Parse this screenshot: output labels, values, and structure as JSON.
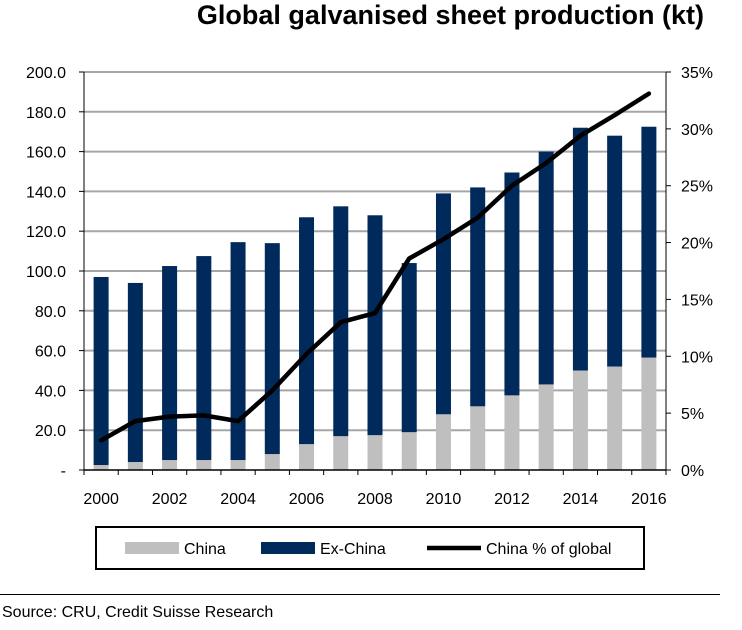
{
  "title": "Global galvanised sheet production (kt)",
  "source": "Source: CRU, Credit Suisse Research",
  "colors": {
    "china": "#bfbfbf",
    "ex_china": "#002a5c",
    "line": "#000000",
    "grid": "#a6a6a6"
  },
  "chart_data": {
    "type": "bar",
    "stacked": true,
    "title": "Global galvanised sheet production (kt)",
    "categories": [
      "2000",
      "2001",
      "2002",
      "2003",
      "2004",
      "2005",
      "2006",
      "2007",
      "2008",
      "2009",
      "2010",
      "2011",
      "2012",
      "2013",
      "2014",
      "2015",
      "2016"
    ],
    "x_tick_labels": [
      "2000",
      "2002",
      "2004",
      "2006",
      "2008",
      "2010",
      "2012",
      "2014",
      "2016"
    ],
    "y_tick_labels": [
      "-",
      "20.0",
      "40.0",
      "60.0",
      "80.0",
      "100.0",
      "120.0",
      "140.0",
      "160.0",
      "180.0",
      "200.0"
    ],
    "y2_tick_labels": [
      "0%",
      "5%",
      "10%",
      "15%",
      "20%",
      "25%",
      "30%",
      "35%"
    ],
    "ylim": [
      0,
      200
    ],
    "y2lim": [
      0,
      35
    ],
    "grid": true,
    "legend_position": "bottom",
    "series": [
      {
        "name": "China",
        "type": "bar",
        "axis": "left",
        "values": [
          2.5,
          4,
          5,
          5,
          5,
          8,
          13,
          17,
          17.5,
          19,
          28,
          32,
          37.5,
          43,
          50,
          52,
          56.5
        ]
      },
      {
        "name": "Ex-China",
        "type": "bar",
        "axis": "left",
        "values": [
          94.5,
          90,
          97.5,
          102.5,
          109.5,
          106,
          114,
          115.5,
          110.5,
          85,
          111,
          110,
          112,
          117,
          122,
          116,
          116
        ]
      },
      {
        "name": "China % of global",
        "type": "line",
        "axis": "right",
        "unit": "%",
        "values": [
          2.6,
          4.3,
          4.7,
          4.8,
          4.3,
          7.0,
          10.2,
          13.0,
          13.8,
          18.6,
          20.3,
          22.2,
          25.0,
          27.0,
          29.4,
          31.2,
          33.1
        ]
      }
    ]
  }
}
